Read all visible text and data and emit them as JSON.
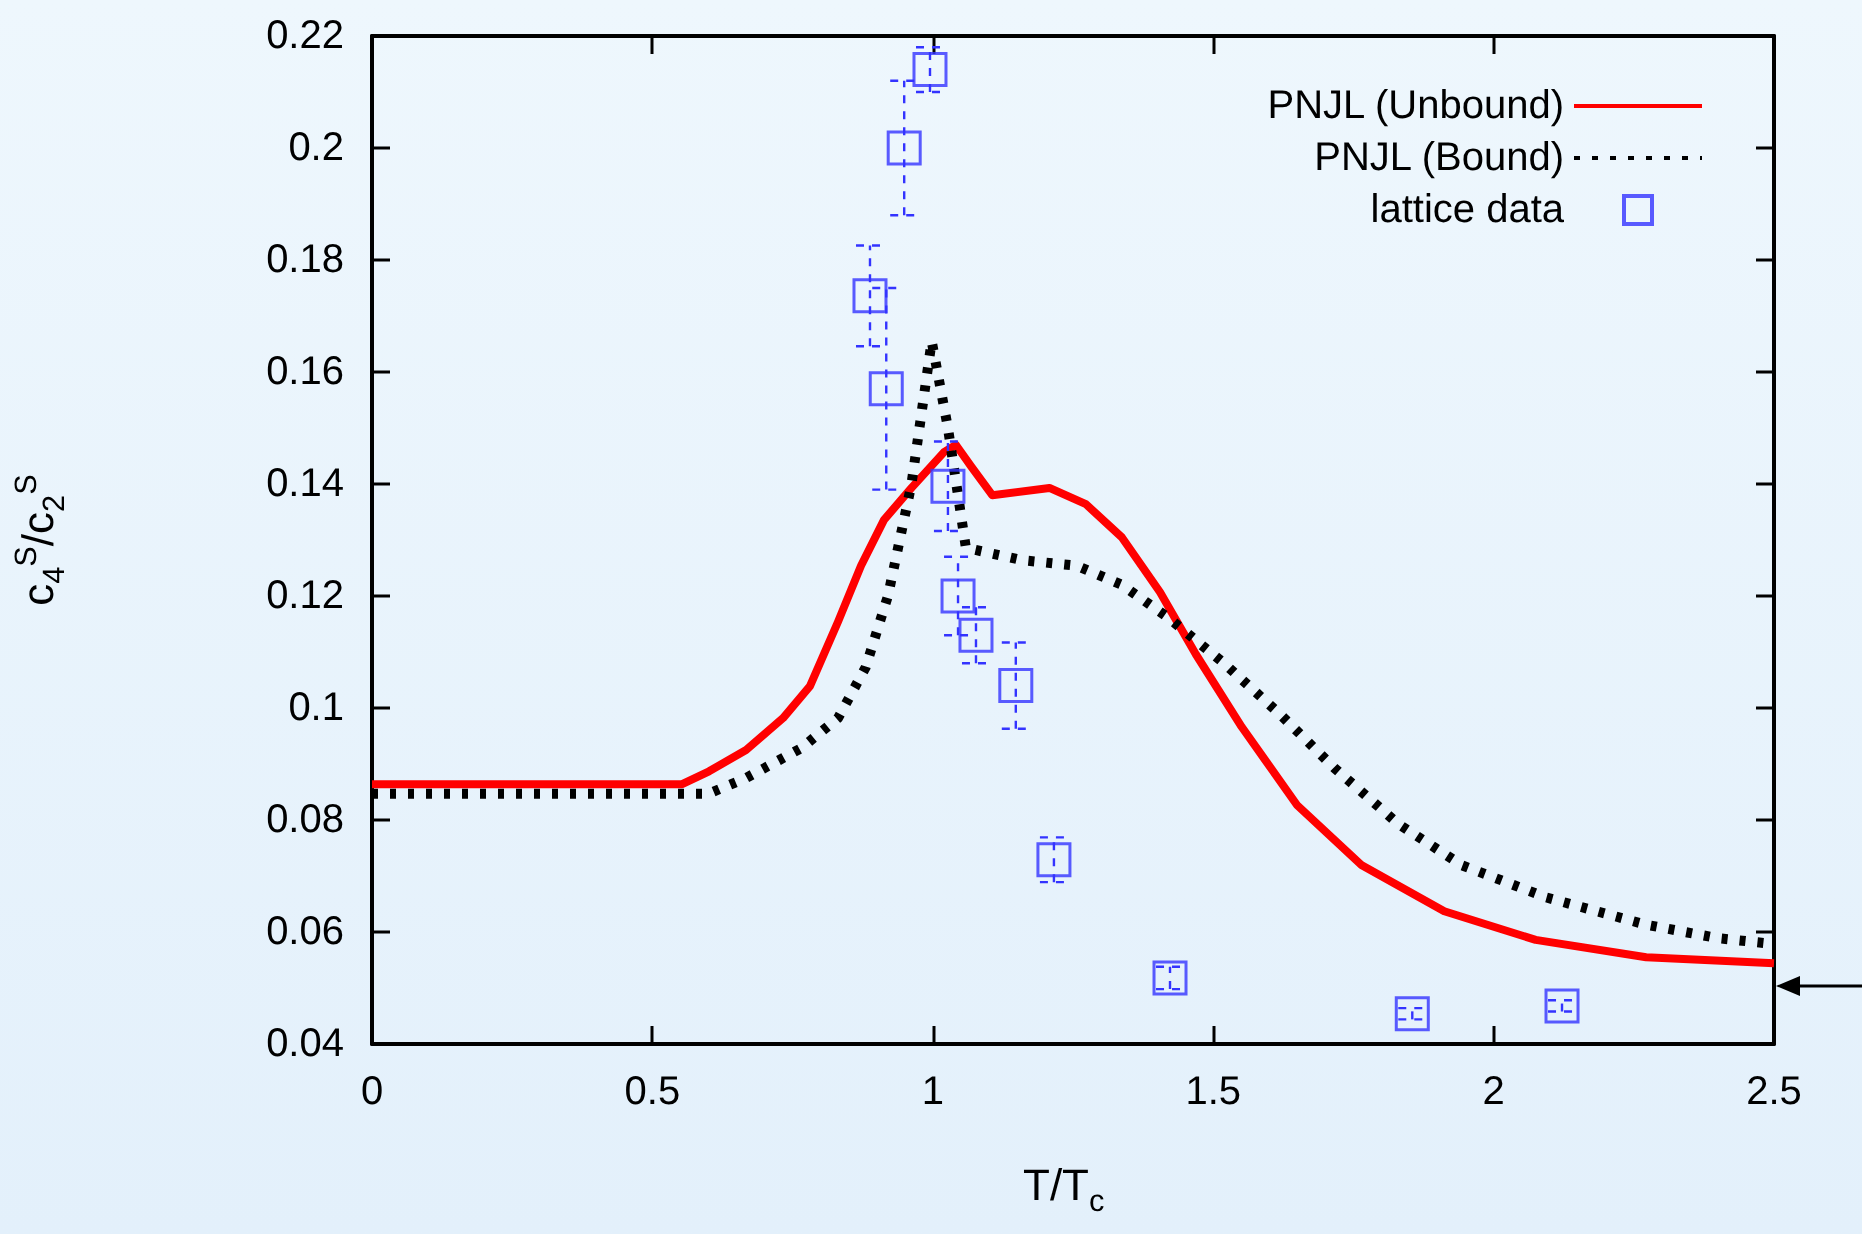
{
  "chart_data": {
    "type": "line",
    "xlabel": "T/T$_{c}$",
    "ylabel": "c$_{4}$$^{S}$/c$_{2}$$^{S}$",
    "xlim": [
      0,
      2.5
    ],
    "xticks": [
      0,
      0.5,
      1,
      1.5,
      2,
      2.5
    ],
    "ylim": [
      0.04,
      0.22
    ],
    "yticks": [
      0.04,
      0.06,
      0.08,
      0.1,
      0.12,
      0.14,
      0.16,
      0.18,
      0.2,
      0.22
    ],
    "grid": false,
    "legend": "top right",
    "series": [
      {
        "name": "PNJL (Unbound)",
        "color": "#ff0000",
        "line_style": "solid",
        "marker": "none",
        "x": [
          0,
          0.553,
          0.601,
          0.667,
          0.733,
          0.781,
          0.831,
          0.872,
          0.913,
          0.962,
          1.02,
          1.041,
          1.068,
          1.106,
          1.208,
          1.273,
          1.337,
          1.405,
          1.469,
          1.551,
          1.65,
          1.765,
          1.912,
          2.075,
          2.272,
          2.5
        ],
        "values": [
          0.0864,
          0.0864,
          0.0887,
          0.0925,
          0.0982,
          0.1039,
          0.1154,
          0.1254,
          0.1336,
          0.1393,
          0.1457,
          0.147,
          0.1432,
          0.138,
          0.1393,
          0.1364,
          0.1305,
          0.1207,
          0.1096,
          0.0966,
          0.0826,
          0.0719,
          0.0637,
          0.0586,
          0.0555,
          0.0544
        ]
      },
      {
        "name": "PNJL (Bound)",
        "color": "#000000",
        "line_style": "dotted",
        "marker": "none",
        "x": [
          0,
          0.6,
          0.667,
          0.765,
          0.831,
          0.88,
          0.92,
          0.962,
          0.998,
          1.027,
          1.059,
          1.159,
          1.257,
          1.337,
          1.419,
          1.519,
          1.618,
          1.716,
          1.83,
          1.944,
          2.093,
          2.272,
          2.4,
          2.486
        ],
        "values": [
          0.0847,
          0.0847,
          0.0875,
          0.0928,
          0.0982,
          0.1072,
          0.12,
          0.14,
          0.1655,
          0.15,
          0.1286,
          0.1264,
          0.1254,
          0.122,
          0.1162,
          0.108,
          0.099,
          0.0893,
          0.0793,
          0.0719,
          0.0662,
          0.0613,
          0.0589,
          0.058
        ]
      },
      {
        "name": "lattice data",
        "type": "scatter",
        "color": "#3333ff",
        "marker": "square",
        "x": [
          0.995,
          0.949,
          0.888,
          0.917,
          1.027,
          1.045,
          1.077,
          1.148,
          1.216,
          1.423,
          1.855,
          2.122
        ],
        "values": [
          0.214,
          0.2,
          0.1736,
          0.157,
          0.1396,
          0.12,
          0.113,
          0.104,
          0.0729,
          0.0518,
          0.0454,
          0.0468
        ],
        "errors": [
          0.004,
          0.012,
          0.009,
          0.018,
          0.008,
          0.007,
          0.005,
          0.0077,
          0.004,
          0.002,
          0.001,
          0.001
        ]
      }
    ]
  }
}
